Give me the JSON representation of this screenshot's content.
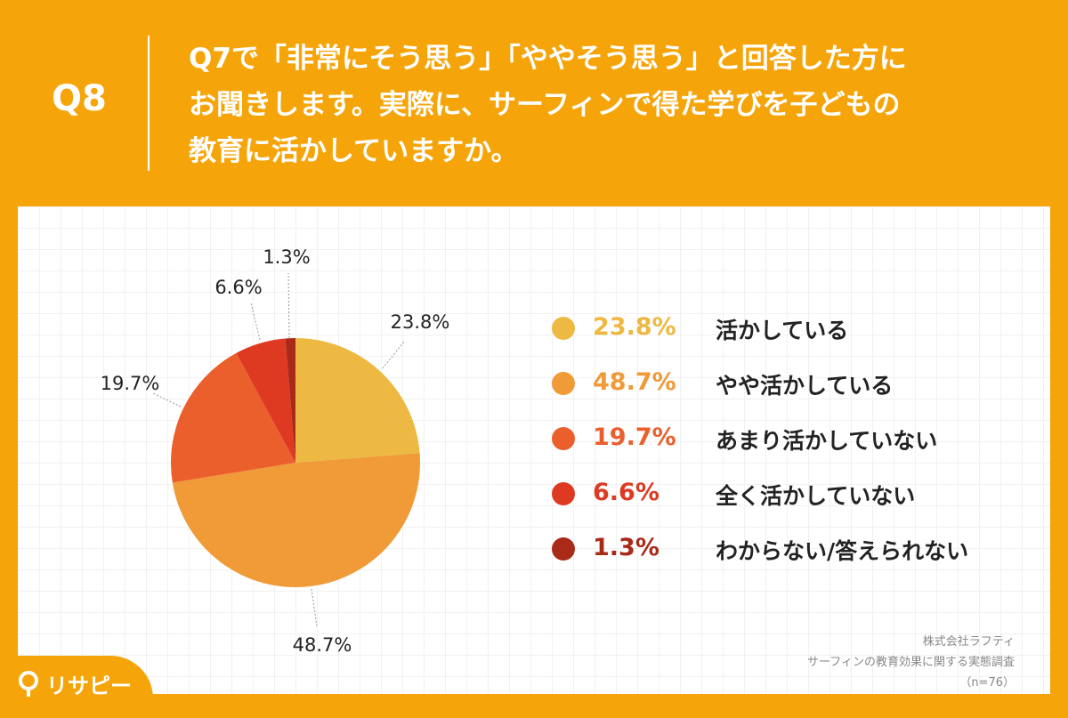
{
  "header": {
    "qnum": "Q8",
    "lines": [
      "Q7で「非常にそう思う」「ややそう思う」と回答した方に",
      "お聞きします。実際に、サーフィンで得た学びを子どもの",
      "教育に活かしていますか。"
    ]
  },
  "chart_data": {
    "type": "pie",
    "title": "",
    "slices": [
      {
        "label": "活かしている",
        "value": 23.8,
        "value_label": "23.8%",
        "color": "#EDB943"
      },
      {
        "label": "やや活かしている",
        "value": 48.7,
        "value_label": "48.7%",
        "color": "#F09A38"
      },
      {
        "label": "あまり活かしていない",
        "value": 19.7,
        "value_label": "19.7%",
        "color": "#EB5F2D"
      },
      {
        "label": "全く活かしていない",
        "value": 6.6,
        "value_label": "6.6%",
        "color": "#DE3A22"
      },
      {
        "label": "わからない/答えられない",
        "value": 1.3,
        "value_label": "1.3%",
        "color": "#A92A18"
      }
    ],
    "start": "12 o'clock, clockwise",
    "legend_position": "right"
  },
  "source": {
    "company": "株式会社ラフティ",
    "survey": "サーフィンの教育効果に関する実態調査",
    "n": "（n=76）"
  },
  "logo": {
    "text": "リサピー",
    "icon": "magnifier-icon",
    "color": "#F5A50A"
  },
  "colors": {
    "background": "#F5A50A",
    "panel": "#FFFFFF"
  }
}
